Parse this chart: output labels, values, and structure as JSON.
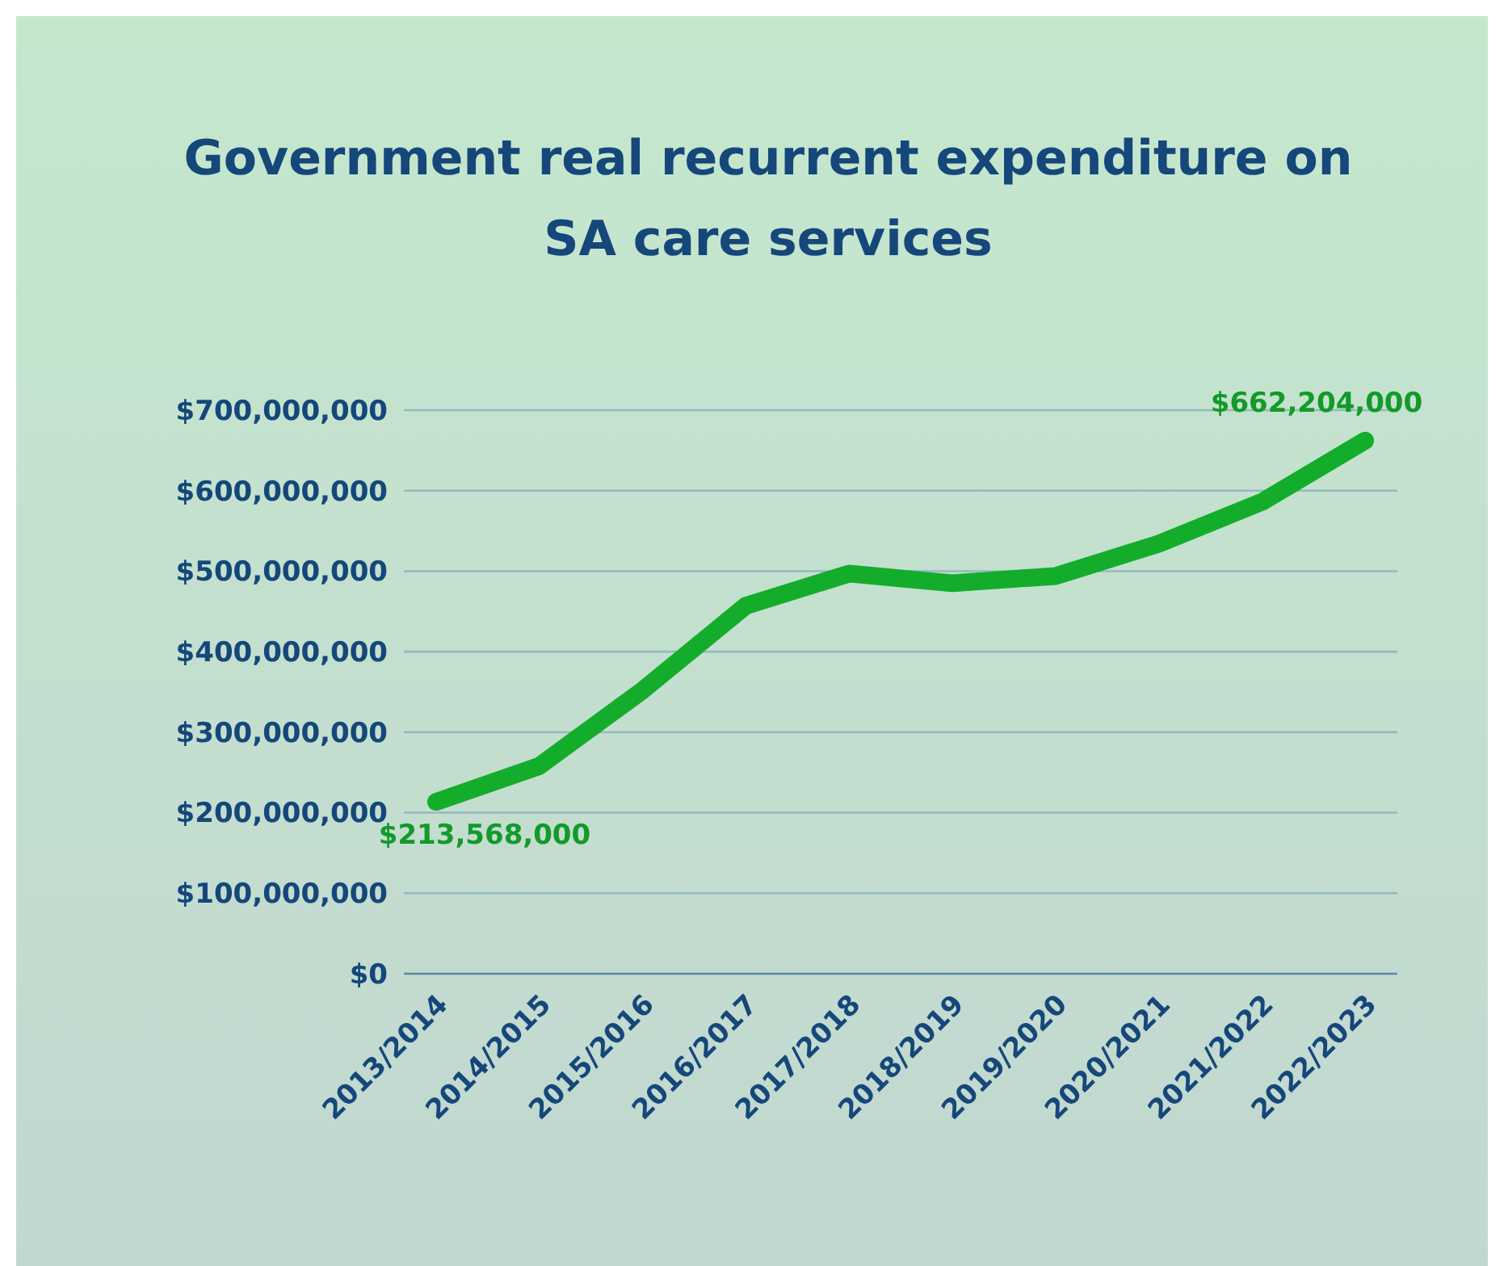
{
  "chart_data": {
    "type": "line",
    "title": "Government real recurrent expenditure on SA care services",
    "categories": [
      "2013/2014",
      "2014/2015",
      "2015/2016",
      "2016/2017",
      "2017/2018",
      "2018/2019",
      "2019/2020",
      "2020/2021",
      "2021/2022",
      "2022/2023"
    ],
    "series": [
      {
        "color": "#13ad2b",
        "values": [
          213568000,
          258000000,
          352000000,
          457000000,
          497000000,
          485000000,
          494000000,
          534000000,
          586000000,
          662204000
        ],
        "value_labels": [
          "$213,568,000",
          null,
          null,
          null,
          null,
          null,
          null,
          null,
          null,
          "$662,204,000"
        ]
      }
    ],
    "ylim": [
      0,
      700000000
    ],
    "yticks": [
      {
        "value": 0,
        "label": "$0"
      },
      {
        "value": 100000000,
        "label": "$100,000,000"
      },
      {
        "value": 200000000,
        "label": "$200,000,000"
      },
      {
        "value": 300000000,
        "label": "$300,000,000"
      },
      {
        "value": 400000000,
        "label": "$400,000,000"
      },
      {
        "value": 500000000,
        "label": "$500,000,000"
      },
      {
        "value": 600000000,
        "label": "$600,000,000"
      },
      {
        "value": 700000000,
        "label": "$700,000,000"
      }
    ],
    "grid": "y",
    "line_style": "solid",
    "marker": "none"
  }
}
